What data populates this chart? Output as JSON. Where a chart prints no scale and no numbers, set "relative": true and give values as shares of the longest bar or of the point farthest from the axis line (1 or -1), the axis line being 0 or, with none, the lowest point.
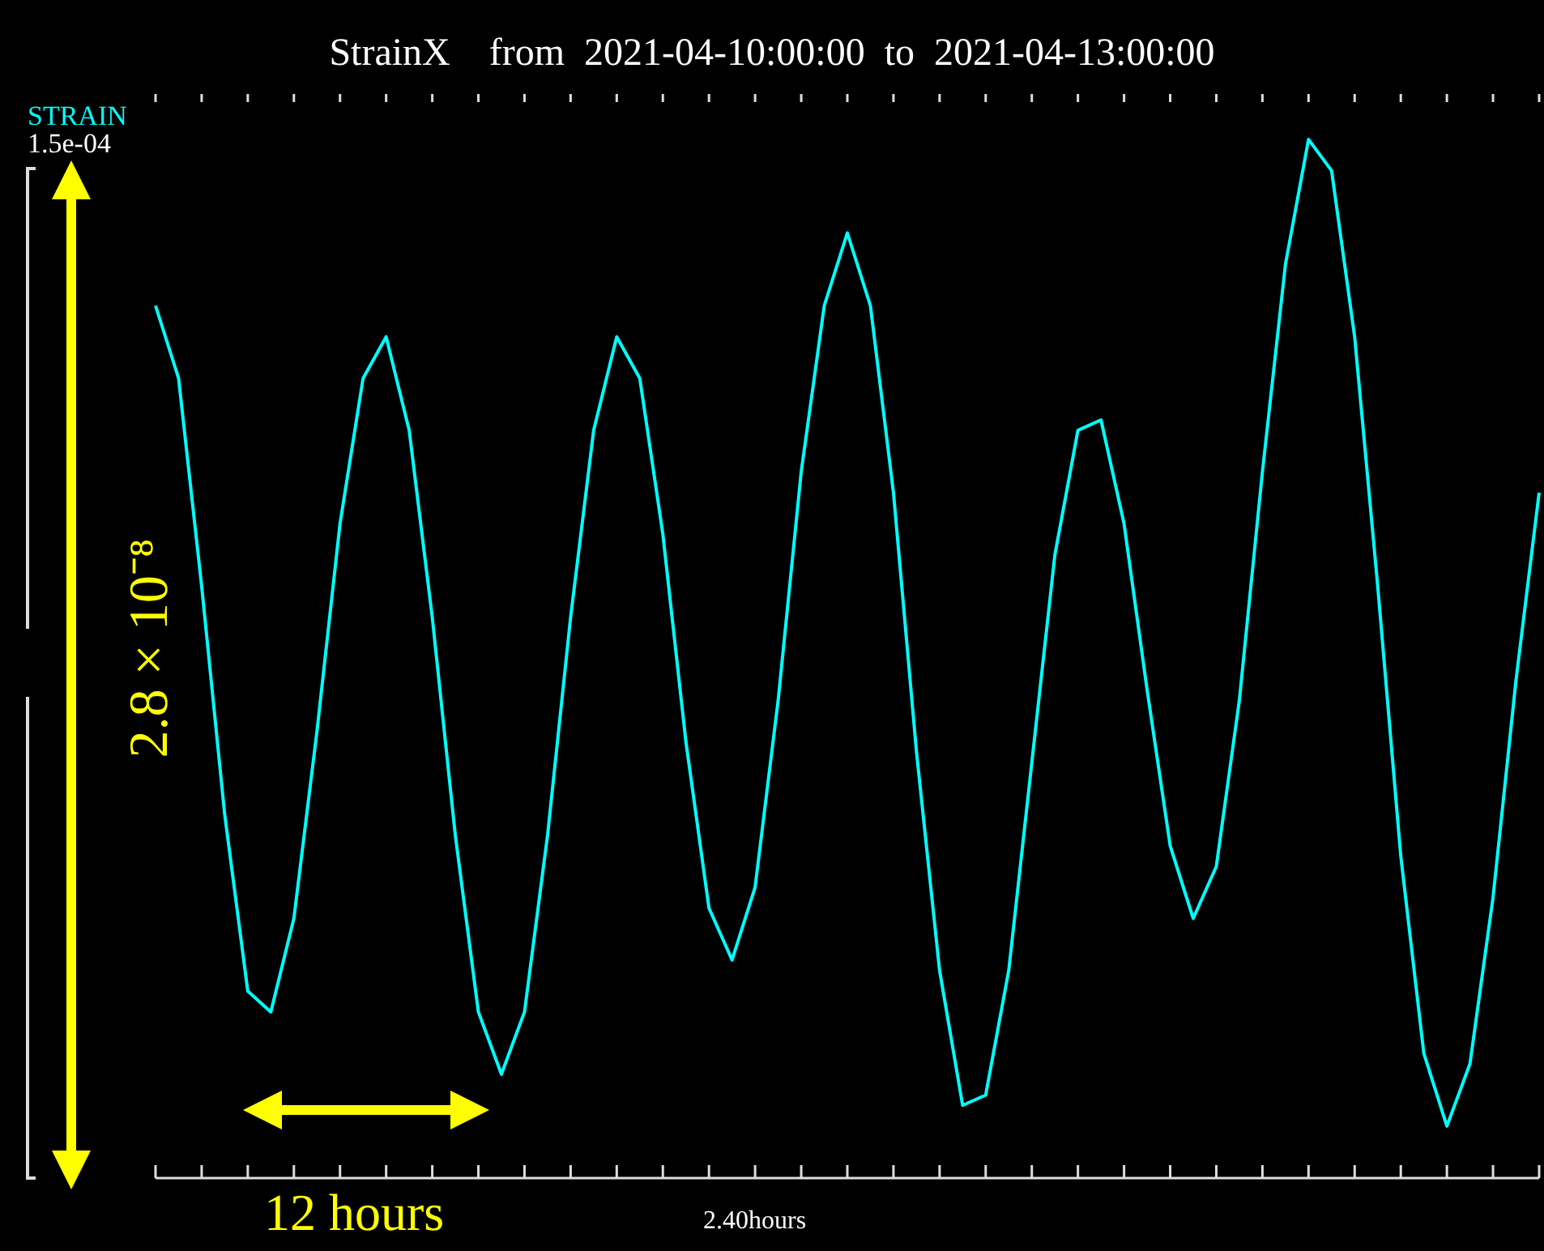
{
  "chart_data": {
    "type": "line",
    "title": "StrainX    from  2021-04-10:00:00  to  2021-04-13:00:00",
    "ylabel": "STRAIN",
    "annotations": [
      "1.5e-04",
      "2.8 × 10⁻⁸",
      "12 hours",
      "2.40hours"
    ],
    "relative": true,
    "marker": "none",
    "line_style": "solid",
    "grid": false,
    "legend": false,
    "categories": [
      null,
      null,
      null,
      null,
      null,
      null,
      null,
      null,
      null,
      null,
      null,
      null,
      null,
      null,
      null,
      null,
      null,
      null,
      null,
      null,
      null,
      null,
      null,
      null,
      null,
      null,
      null,
      null,
      null,
      null,
      null,
      null,
      null,
      null,
      null,
      null,
      null,
      null,
      null,
      null,
      null,
      null,
      null,
      null,
      null,
      null,
      null,
      null,
      null,
      null,
      null,
      null,
      null,
      null,
      null,
      null,
      null,
      null,
      null,
      null,
      null
    ],
    "series": [
      {
        "color": "#00ffff",
        "values": [
          0.84,
          0.77,
          0.57,
          0.35,
          0.18,
          0.16,
          0.25,
          0.43,
          0.63,
          0.77,
          0.81,
          0.72,
          0.54,
          0.33,
          0.16,
          0.1,
          0.16,
          0.33,
          0.54,
          0.72,
          0.81,
          0.77,
          0.62,
          0.42,
          0.26,
          0.21,
          0.28,
          0.46,
          0.68,
          0.84,
          0.91,
          0.84,
          0.66,
          0.41,
          0.2,
          0.07,
          0.08,
          0.2,
          0.4,
          0.6,
          0.72,
          0.73,
          0.63,
          0.47,
          0.32,
          0.25,
          0.3,
          0.46,
          0.68,
          0.88,
          1.0,
          0.97,
          0.81,
          0.57,
          0.31,
          0.12,
          0.05,
          0.11,
          0.27,
          0.48,
          0.66
        ]
      }
    ]
  }
}
